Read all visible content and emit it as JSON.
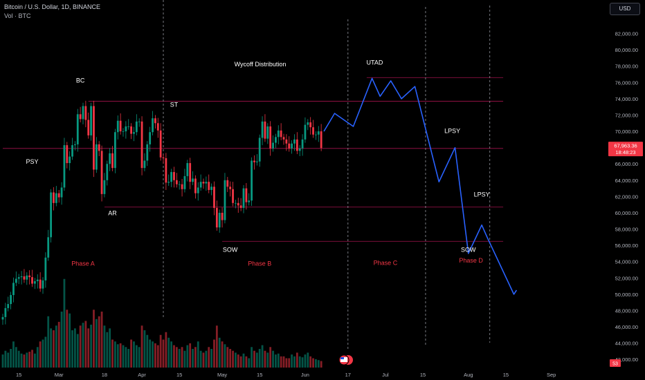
{
  "header": {
    "title": "Bitcoin / U.S. Dollar, 1D, BINANCE",
    "volume_label": "Vol · BTC"
  },
  "currency_button": "USD",
  "price_tag": {
    "price": "67,963.36",
    "countdown": "18:48:23",
    "color": "#f23645"
  },
  "bottom_badge": "53",
  "colors": {
    "up": "#089981",
    "down": "#f23645",
    "projection": "#2962ff",
    "levels": "#c2185b",
    "phase_text": "#f23645",
    "background": "#000000"
  },
  "chart_data": {
    "type": "candlestick",
    "title": "Wycoff Distribution",
    "y_axis": {
      "min": 41000,
      "max": 84000,
      "position": "right",
      "ticks": [
        42000,
        44000,
        46000,
        48000,
        50000,
        52000,
        54000,
        56000,
        58000,
        60000,
        62000,
        64000,
        66000,
        68000,
        70000,
        72000,
        74000,
        76000,
        78000,
        80000,
        82000
      ],
      "tick_labels": [
        "42,000.00",
        "44,000.00",
        "46,000.00",
        "48,000.00",
        "50,000.00",
        "52,000.00",
        "54,000.00",
        "56,000.00",
        "58,000.00",
        "60,000.00",
        "62,000.00",
        "64,000.00",
        "66,000.00",
        "68,000.00",
        "70,000.00",
        "72,000.00",
        "74,000.00",
        "76,000.00",
        "78,000.00",
        "80,000.00",
        "82,000.00"
      ]
    },
    "x_axis": {
      "start_date": "2024-02-09",
      "end_date": "2024-09-08",
      "ticks": [
        {
          "date": "2024-02-15",
          "label": "15"
        },
        {
          "date": "2024-03-01",
          "label": "Mar"
        },
        {
          "date": "2024-03-18",
          "label": "18"
        },
        {
          "date": "2024-04-01",
          "label": "Apr"
        },
        {
          "date": "2024-04-15",
          "label": "15"
        },
        {
          "date": "2024-05-01",
          "label": "May"
        },
        {
          "date": "2024-05-15",
          "label": "15"
        },
        {
          "date": "2024-06-01",
          "label": "Jun"
        },
        {
          "date": "2024-06-17",
          "label": "17"
        },
        {
          "date": "2024-07-01",
          "label": "Jul"
        },
        {
          "date": "2024-07-15",
          "label": "15"
        },
        {
          "date": "2024-08-01",
          "label": "Aug"
        },
        {
          "date": "2024-08-15",
          "label": "15"
        },
        {
          "date": "2024-09-01",
          "label": "Sep"
        }
      ]
    },
    "candles": {
      "start_date": "2024-02-09",
      "close": [
        47200,
        48300,
        48800,
        49900,
        51400,
        51900,
        52100,
        52200,
        51800,
        52300,
        52100,
        51300,
        51600,
        51800,
        50700,
        51700,
        54500,
        57000,
        62500,
        61200,
        62400,
        61900,
        63100,
        68300,
        66100,
        66900,
        68300,
        68400,
        72100,
        71500,
        73100,
        71400,
        69500,
        73100,
        65300,
        68400,
        67600,
        62300,
        64000,
        66000,
        67300,
        65500,
        69900,
        71300,
        70000,
        70000,
        70600,
        70600,
        69700,
        69900,
        71200,
        71200,
        65500,
        66400,
        68400,
        69900,
        71600,
        71000,
        70100,
        66800,
        66700,
        63700,
        63800,
        65000,
        64000,
        63500,
        63500,
        62900,
        64500,
        66100,
        63800,
        64200,
        62400,
        63100,
        63800,
        63600,
        63800,
        62800,
        63200,
        60600,
        58200,
        60000,
        59100,
        64000,
        63200,
        62900,
        61200,
        61200,
        60900,
        60600,
        63000,
        61300,
        61500,
        66400,
        66200,
        66300,
        69200,
        71200,
        69100,
        70600,
        67900,
        68600,
        69300,
        70100,
        69300,
        69000,
        68500,
        67900,
        68500,
        69000,
        67600,
        67900,
        69000,
        70800,
        71100,
        70500,
        69600,
        69600,
        70000,
        67963
      ],
      "volume": [
        14,
        18,
        16,
        20,
        28,
        22,
        18,
        15,
        14,
        16,
        17,
        19,
        15,
        22,
        28,
        30,
        33,
        55,
        42,
        40,
        45,
        49,
        60,
        95,
        62,
        58,
        40,
        42,
        36,
        45,
        48,
        50,
        42,
        46,
        62,
        52,
        55,
        60,
        45,
        38,
        42,
        30,
        28,
        25,
        26,
        24,
        22,
        20,
        30,
        28,
        24,
        22,
        45,
        40,
        35,
        30,
        28,
        26,
        24,
        35,
        30,
        38,
        32,
        28,
        24,
        22,
        20,
        22,
        18,
        24,
        26,
        20,
        22,
        28,
        18,
        16,
        18,
        22,
        20,
        30,
        45,
        32,
        28,
        25,
        22,
        20,
        18,
        16,
        14,
        12,
        15,
        12,
        10,
        22,
        18,
        16,
        20,
        24,
        18,
        16,
        22,
        18,
        14,
        15,
        12,
        12,
        10,
        10,
        14,
        12,
        16,
        12,
        11,
        14,
        16,
        12,
        10,
        9,
        8,
        7
      ]
    },
    "projection_path": [
      {
        "date": "2024-06-08",
        "price": 70000
      },
      {
        "date": "2024-06-12",
        "price": 72200
      },
      {
        "date": "2024-06-19",
        "price": 70600
      },
      {
        "date": "2024-06-26",
        "price": 76500
      },
      {
        "date": "2024-06-29",
        "price": 74300
      },
      {
        "date": "2024-07-03",
        "price": 76200
      },
      {
        "date": "2024-07-07",
        "price": 74000
      },
      {
        "date": "2024-07-12",
        "price": 75500
      },
      {
        "date": "2024-07-21",
        "price": 63800
      },
      {
        "date": "2024-07-27",
        "price": 68000
      },
      {
        "date": "2024-08-01",
        "price": 55000
      },
      {
        "date": "2024-08-06",
        "price": 58500
      },
      {
        "date": "2024-08-08",
        "price": 57000
      },
      {
        "date": "2024-08-18",
        "price": 50000
      },
      {
        "date": "2024-08-19",
        "price": 50500
      }
    ],
    "levels": [
      {
        "price": 76600,
        "from": "2024-06-24",
        "to": "2024-08-14"
      },
      {
        "price": 73700,
        "from": "2024-03-12",
        "to": "2024-08-14"
      },
      {
        "price": 67900,
        "from": "2024-02-09",
        "to": "2024-08-14"
      },
      {
        "price": 60700,
        "from": "2024-03-18",
        "to": "2024-08-14"
      },
      {
        "price": 56500,
        "from": "2024-05-01",
        "to": "2024-08-14"
      }
    ],
    "phase_dividers": [
      "2024-04-09",
      "2024-06-17",
      "2024-07-16",
      "2024-08-09"
    ],
    "wyckoff_labels": [
      {
        "text": "PSY",
        "date": "2024-02-20",
        "price": 66000
      },
      {
        "text": "BC",
        "date": "2024-03-09",
        "price": 76000
      },
      {
        "text": "AR",
        "date": "2024-03-21",
        "price": 59700
      },
      {
        "text": "ST",
        "date": "2024-04-13",
        "price": 73000
      },
      {
        "text": "SOW",
        "date": "2024-05-04",
        "price": 55200
      },
      {
        "text": "UTAD",
        "date": "2024-06-27",
        "price": 78200
      },
      {
        "text": "LPSY",
        "date": "2024-07-26",
        "price": 69800
      },
      {
        "text": "LPSY",
        "date": "2024-08-06",
        "price": 62000
      },
      {
        "text": "SOW",
        "date": "2024-08-01",
        "price": 55200
      }
    ],
    "phase_labels": [
      {
        "text": "Phase A",
        "date": "2024-03-10",
        "price": 53500
      },
      {
        "text": "Phase B",
        "date": "2024-05-15",
        "price": 53500
      },
      {
        "text": "Phase C",
        "date": "2024-07-01",
        "price": 53600
      },
      {
        "text": "Phase D",
        "date": "2024-08-02",
        "price": 53900
      }
    ]
  }
}
